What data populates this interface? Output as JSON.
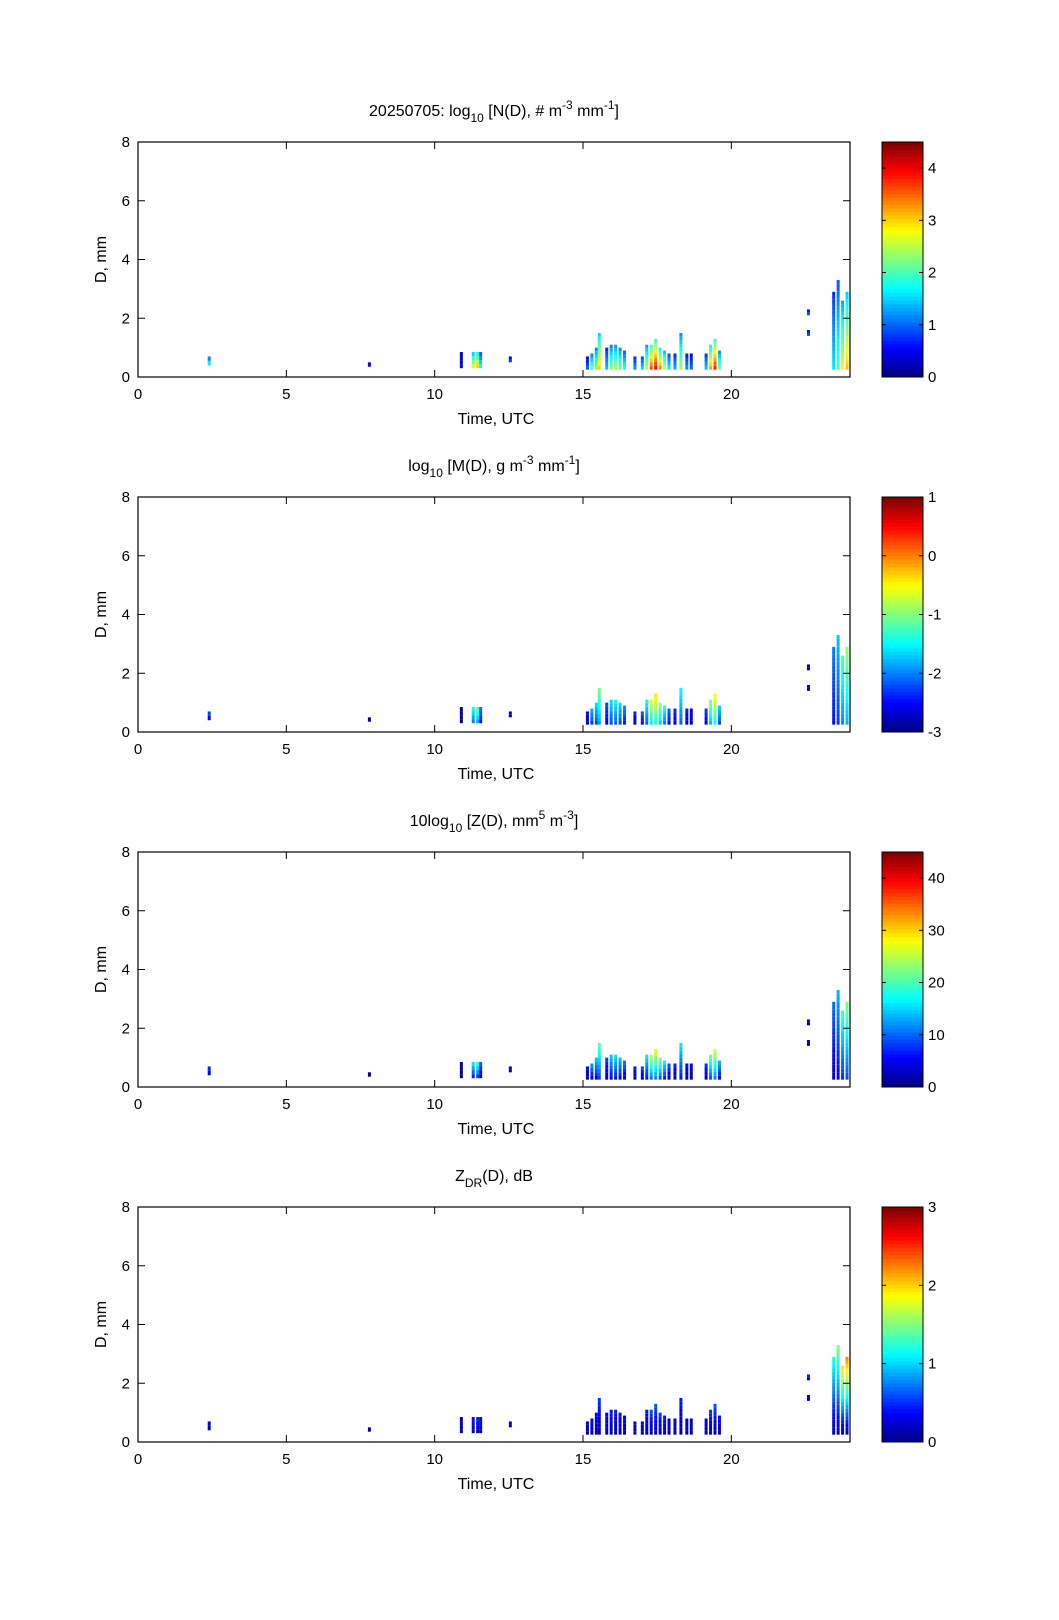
{
  "figure": {
    "date": "20250705",
    "background": "#ffffff"
  },
  "chart_data": [
    {
      "type": "heatmap",
      "title_parts": [
        "20250705: log",
        "10",
        " [N(D), # m",
        "-3",
        " mm",
        "-1",
        "]"
      ],
      "title": "20250705: log10 [N(D), # m^-3 mm^-1]",
      "xlabel": "Time, UTC",
      "ylabel": "D, mm",
      "xlim": [
        0,
        24
      ],
      "ylim": [
        0,
        8
      ],
      "xticks": [
        "0",
        "5",
        "10",
        "15",
        "20"
      ],
      "yticks": [
        "0",
        "2",
        "4",
        "6",
        "8"
      ],
      "colorbar": {
        "colormap": "jet",
        "clim": [
          0,
          4.5
        ],
        "ticks": [
          "0",
          "1",
          "2",
          "3",
          "4"
        ]
      },
      "scale_offset": 0,
      "scale_mult": 1
    },
    {
      "type": "heatmap",
      "title_parts": [
        "log",
        "10",
        " [M(D), g m",
        "-3",
        " mm",
        "-1",
        "]"
      ],
      "title": "log10 [M(D), g m^-3 mm^-1]",
      "xlabel": "Time, UTC",
      "ylabel": "D, mm",
      "xlim": [
        0,
        24
      ],
      "ylim": [
        0,
        8
      ],
      "xticks": [
        "0",
        "5",
        "10",
        "15",
        "20"
      ],
      "yticks": [
        "0",
        "2",
        "4",
        "6",
        "8"
      ],
      "colorbar": {
        "colormap": "jet",
        "clim": [
          -3,
          1
        ],
        "ticks": [
          "-3",
          "-2",
          "-1",
          "0",
          "1"
        ]
      },
      "scale_offset": -3,
      "scale_mult": 0.75
    },
    {
      "type": "heatmap",
      "title_parts": [
        "10log",
        "10",
        " [Z(D),  mm",
        "5",
        " m",
        "-3",
        "]"
      ],
      "title": "10log10 [Z(D), mm^5 m^-3]",
      "xlabel": "Time, UTC",
      "ylabel": "D, mm",
      "xlim": [
        0,
        24
      ],
      "ylim": [
        0,
        8
      ],
      "xticks": [
        "0",
        "5",
        "10",
        "15",
        "20"
      ],
      "yticks": [
        "0",
        "2",
        "4",
        "6",
        "8"
      ],
      "colorbar": {
        "colormap": "jet",
        "clim": [
          0,
          45
        ],
        "ticks": [
          "0",
          "10",
          "20",
          "30",
          "40"
        ]
      },
      "scale_offset": 0,
      "scale_mult": 5
    },
    {
      "type": "heatmap",
      "title_parts": [
        "Z",
        "DR",
        "(D), dB",
        "",
        "",
        "",
        ""
      ],
      "title": "ZDR(D), dB",
      "xlabel": "Time, UTC",
      "ylabel": "D, mm",
      "xlim": [
        0,
        24
      ],
      "ylim": [
        0,
        8
      ],
      "xticks": [
        "0",
        "5",
        "10",
        "15",
        "20"
      ],
      "yticks": [
        "0",
        "2",
        "4",
        "6",
        "8"
      ],
      "colorbar": {
        "colormap": "jet",
        "clim": [
          0,
          3
        ],
        "ticks": [
          "0",
          "1",
          "2",
          "3"
        ]
      },
      "scale_offset": 0,
      "scale_mult": 0.3
    }
  ],
  "events": [
    {
      "t": 2.4,
      "dmin": 0.4,
      "dmax": 0.7,
      "v": 1.6
    },
    {
      "t": 7.8,
      "dmin": 0.35,
      "dmax": 0.5,
      "v": 0.6
    },
    {
      "t": 10.9,
      "dmin": 0.3,
      "dmax": 0.85,
      "v": 0.5
    },
    {
      "t": 11.3,
      "dmin": 0.3,
      "dmax": 0.85,
      "v": 2.6
    },
    {
      "t": 11.45,
      "dmin": 0.3,
      "dmax": 0.85,
      "v": 3.0
    },
    {
      "t": 11.55,
      "dmin": 0.3,
      "dmax": 0.85,
      "v": 1.7
    },
    {
      "t": 12.55,
      "dmin": 0.5,
      "dmax": 0.7,
      "v": 0.8
    },
    {
      "t": 15.15,
      "dmin": 0.25,
      "dmax": 0.7,
      "v": 1.0
    },
    {
      "t": 15.3,
      "dmin": 0.25,
      "dmax": 0.8,
      "v": 2.0
    },
    {
      "t": 15.45,
      "dmin": 0.25,
      "dmax": 1.0,
      "v": 2.2
    },
    {
      "t": 15.55,
      "dmin": 0.25,
      "dmax": 1.5,
      "v": 3.0
    },
    {
      "t": 15.8,
      "dmin": 0.25,
      "dmax": 1.0,
      "v": 1.4
    },
    {
      "t": 15.95,
      "dmin": 0.25,
      "dmax": 1.1,
      "v": 2.2
    },
    {
      "t": 16.1,
      "dmin": 0.25,
      "dmax": 1.1,
      "v": 2.4
    },
    {
      "t": 16.25,
      "dmin": 0.25,
      "dmax": 1.0,
      "v": 2.2
    },
    {
      "t": 16.4,
      "dmin": 0.25,
      "dmax": 0.9,
      "v": 1.8
    },
    {
      "t": 16.75,
      "dmin": 0.25,
      "dmax": 0.7,
      "v": 1.2
    },
    {
      "t": 17.0,
      "dmin": 0.25,
      "dmax": 0.7,
      "v": 1.5
    },
    {
      "t": 17.15,
      "dmin": 0.25,
      "dmax": 1.1,
      "v": 2.4
    },
    {
      "t": 17.3,
      "dmin": 0.25,
      "dmax": 1.1,
      "v": 3.6
    },
    {
      "t": 17.45,
      "dmin": 0.25,
      "dmax": 1.3,
      "v": 3.9
    },
    {
      "t": 17.6,
      "dmin": 0.25,
      "dmax": 1.0,
      "v": 3.3
    },
    {
      "t": 17.75,
      "dmin": 0.25,
      "dmax": 0.9,
      "v": 2.6
    },
    {
      "t": 17.9,
      "dmin": 0.25,
      "dmax": 0.8,
      "v": 1.6
    },
    {
      "t": 18.1,
      "dmin": 0.25,
      "dmax": 0.8,
      "v": 1.3
    },
    {
      "t": 18.3,
      "dmin": 0.25,
      "dmax": 1.5,
      "v": 2.4
    },
    {
      "t": 18.5,
      "dmin": 0.25,
      "dmax": 0.8,
      "v": 1.2
    },
    {
      "t": 18.65,
      "dmin": 0.25,
      "dmax": 0.8,
      "v": 1.0
    },
    {
      "t": 19.15,
      "dmin": 0.25,
      "dmax": 0.8,
      "v": 1.4
    },
    {
      "t": 19.3,
      "dmin": 0.25,
      "dmax": 1.1,
      "v": 3.2
    },
    {
      "t": 19.45,
      "dmin": 0.25,
      "dmax": 1.3,
      "v": 3.8
    },
    {
      "t": 19.6,
      "dmin": 0.25,
      "dmax": 0.9,
      "v": 2.2
    },
    {
      "t": 22.6,
      "dmin": 1.4,
      "dmax": 1.6,
      "v": 0.9
    },
    {
      "t": 22.6,
      "dmin": 2.1,
      "dmax": 2.3,
      "v": 0.9
    },
    {
      "t": 23.45,
      "dmin": 0.25,
      "dmax": 2.9,
      "v": 1.6
    },
    {
      "t": 23.6,
      "dmin": 0.25,
      "dmax": 3.3,
      "v": 2.0
    },
    {
      "t": 23.75,
      "dmin": 0.25,
      "dmax": 2.6,
      "v": 2.7
    },
    {
      "t": 23.9,
      "dmin": 0.25,
      "dmax": 2.9,
      "v": 3.1
    }
  ]
}
